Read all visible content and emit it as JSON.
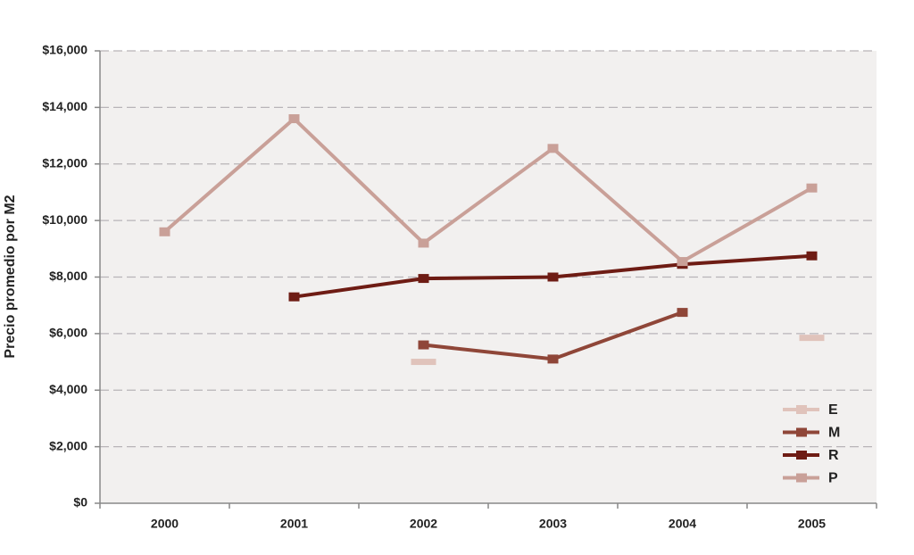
{
  "chart_data": {
    "type": "line",
    "y_label": "Precio promedio por M2",
    "categories": [
      "2000",
      "2001",
      "2002",
      "2003",
      "2004",
      "2005"
    ],
    "series": [
      {
        "name": "E",
        "color": "#e0c3bb",
        "values": [
          null,
          null,
          5000,
          null,
          null,
          5850
        ]
      },
      {
        "name": "M",
        "color": "#8f4638",
        "values": [
          null,
          null,
          5600,
          5100,
          6750,
          null
        ]
      },
      {
        "name": "R",
        "color": "#6e1c14",
        "values": [
          null,
          7300,
          7950,
          8000,
          8450,
          8750
        ]
      },
      {
        "name": "P",
        "color": "#c9a098",
        "values": [
          9600,
          13600,
          9200,
          12550,
          8550,
          11150
        ]
      }
    ],
    "ylim": [
      0,
      16000
    ],
    "yticks": [
      {
        "value": 0,
        "label": "$0"
      },
      {
        "value": 2000,
        "label": "$2,000"
      },
      {
        "value": 4000,
        "label": "$4,000"
      },
      {
        "value": 6000,
        "label": "$6,000"
      },
      {
        "value": 8000,
        "label": "$8,000"
      },
      {
        "value": 10000,
        "label": "$10,000"
      },
      {
        "value": 12000,
        "label": "$12,000"
      },
      {
        "value": 14000,
        "label": "$14,000"
      },
      {
        "value": 16000,
        "label": "$16,000"
      }
    ],
    "grid": true,
    "legend": "lower right"
  }
}
